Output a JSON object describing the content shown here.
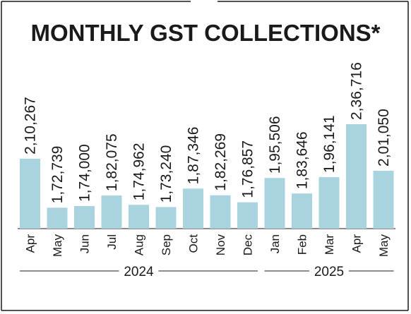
{
  "colors": {
    "bar": "#a9d3de",
    "frame": "#1a1a1a",
    "text": "#1a1a1a"
  },
  "chart_data": {
    "type": "bar",
    "title": "MONTHLY GST COLLECTIONS*",
    "categories": [
      "Apr",
      "May",
      "Jun",
      "Jul",
      "Aug",
      "Sep",
      "Oct",
      "Nov",
      "Dec",
      "Jan",
      "Feb",
      "Mar",
      "Apr",
      "May"
    ],
    "values": [
      210267,
      172739,
      174000,
      182075,
      174962,
      173240,
      187346,
      182269,
      176857,
      195506,
      183646,
      196141,
      236716,
      201050
    ],
    "value_labels": [
      "2,10,267",
      "1,72,739",
      "1,74,000",
      "1,82,075",
      "1,74,962",
      "1,73,240",
      "1,87,346",
      "1,82,269",
      "1,76,857",
      "1,95,506",
      "1,83,646",
      "1,96,141",
      "2,36,716",
      "2,01,050"
    ],
    "year_groups": [
      {
        "label": "2024",
        "first_index": 0,
        "last_index": 8
      },
      {
        "label": "2025",
        "first_index": 9,
        "last_index": 13
      }
    ],
    "xlabel": "",
    "ylabel": "",
    "ylim": [
      0,
      236716
    ],
    "grid": false,
    "legend": "none"
  }
}
